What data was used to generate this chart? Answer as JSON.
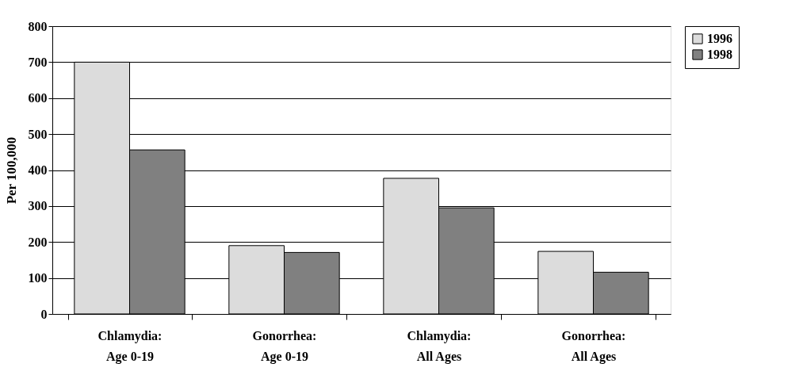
{
  "chart_data": {
    "type": "bar",
    "ylabel": "Per 100,000",
    "categories": [
      "Chlamydia:\nAge 0-19",
      "Gonorrhea:\nAge 0-19",
      "Chlamydia:\nAll Ages",
      "Gonorrhea:\nAll Ages"
    ],
    "series": [
      {
        "name": "1996",
        "color": "#dcdcdc",
        "values": [
          700,
          190,
          377,
          174
        ]
      },
      {
        "name": "1998",
        "color": "#808080",
        "values": [
          456,
          171,
          295,
          116
        ]
      }
    ],
    "ylim": [
      0,
      800
    ],
    "yticks": [
      0,
      100,
      200,
      300,
      400,
      500,
      600,
      700,
      800
    ],
    "grid": "y",
    "legend": "right"
  }
}
